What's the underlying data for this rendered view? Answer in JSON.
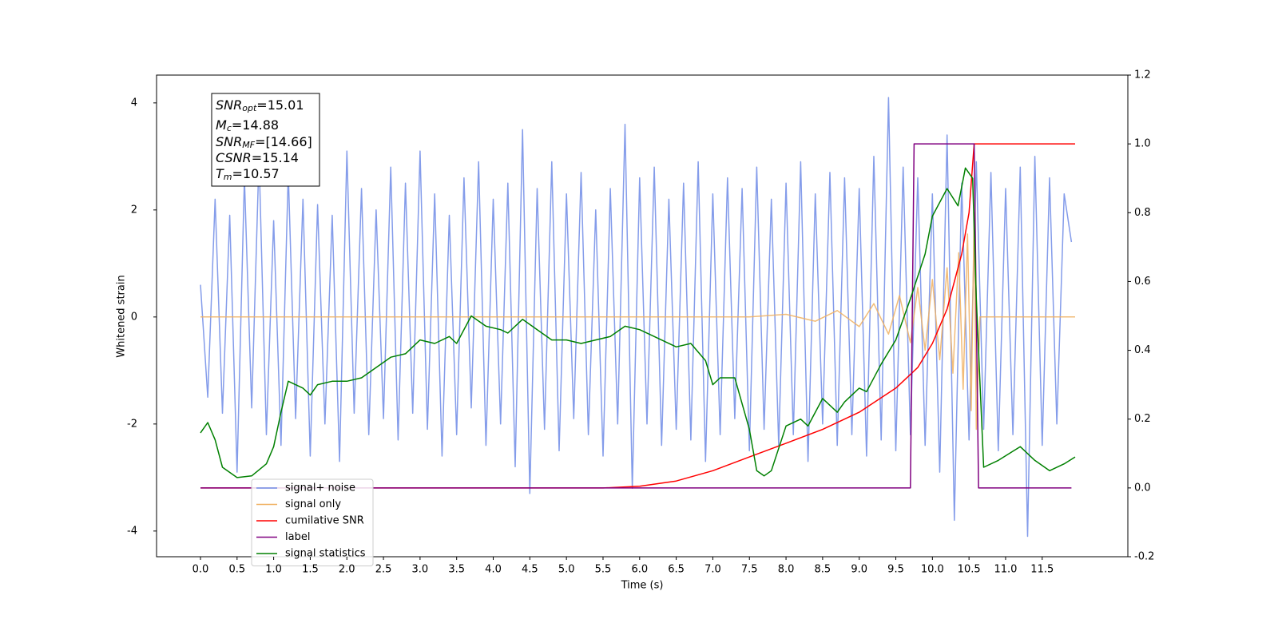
{
  "chart_data": {
    "type": "line",
    "xlabel": "Time (s)",
    "ylabel": "Whitened strain",
    "xlim": [
      -0.6,
      12.67
    ],
    "ylim": [
      -4.48,
      4.52
    ],
    "y2lim": [
      -0.2,
      1.2
    ],
    "xticks": [
      {
        "value": 0,
        "label": "0.0"
      },
      0.5,
      {
        "value": 1,
        "label": "1.0"
      },
      1.5,
      {
        "value": 2,
        "label": "2.0"
      },
      2.5,
      {
        "value": 3,
        "label": "3.0"
      },
      3.5,
      {
        "value": 4,
        "label": "4.0"
      },
      4.5,
      {
        "value": 5,
        "label": "5.0"
      },
      5.5,
      {
        "value": 6,
        "label": "6.0"
      },
      6.5,
      {
        "value": 7,
        "label": "7.0"
      },
      7.5,
      {
        "value": 8,
        "label": "8.0"
      },
      8.5,
      {
        "value": 9,
        "label": "9.0"
      },
      9.5,
      {
        "value": 10,
        "label": "10.0"
      },
      10.5,
      {
        "value": 11,
        "label": "11.0"
      },
      11.5
    ],
    "yticks": [
      -4,
      -2,
      0,
      2,
      4
    ],
    "y2ticks": [
      -0.2,
      {
        "value": 0,
        "label": "0.0"
      },
      0.2,
      0.4,
      0.6,
      0.8,
      {
        "value": 1,
        "label": "1.0"
      },
      1.2
    ],
    "legend": "lower left",
    "annotation": [
      {
        "symbol": "SNR",
        "sub": "opt",
        "text": "=15.01"
      },
      {
        "symbol": "M",
        "sub": "c",
        "text": "=14.88"
      },
      {
        "symbol": "SNR",
        "sub": "MF",
        "text": "=[14.66]"
      },
      {
        "symbol": "CSNR",
        "text": "=15.14"
      },
      {
        "symbol": "T",
        "sub": "m",
        "text": "=10.57"
      }
    ],
    "series": [
      {
        "name": "signal+ noise",
        "color": "#6f8be6",
        "axis": "y",
        "x": [
          0,
          0.1,
          0.2,
          0.3,
          0.4,
          0.5,
          0.6,
          0.7,
          0.8,
          0.9,
          1,
          1.1,
          1.2,
          1.3,
          1.4,
          1.5,
          1.6,
          1.7,
          1.8,
          1.9,
          2,
          2.1,
          2.2,
          2.3,
          2.4,
          2.5,
          2.6,
          2.7,
          2.8,
          2.9,
          3,
          3.1,
          3.2,
          3.3,
          3.4,
          3.5,
          3.6,
          3.7,
          3.8,
          3.9,
          4,
          4.1,
          4.2,
          4.3,
          4.4,
          4.5,
          4.6,
          4.7,
          4.8,
          4.9,
          5,
          5.1,
          5.2,
          5.3,
          5.4,
          5.5,
          5.6,
          5.7,
          5.8,
          5.9,
          6,
          6.1,
          6.2,
          6.3,
          6.4,
          6.5,
          6.6,
          6.7,
          6.8,
          6.9,
          7,
          7.1,
          7.2,
          7.3,
          7.4,
          7.5,
          7.6,
          7.7,
          7.8,
          7.9,
          8,
          8.1,
          8.2,
          8.3,
          8.4,
          8.5,
          8.6,
          8.7,
          8.8,
          8.9,
          9,
          9.1,
          9.2,
          9.3,
          9.4,
          9.5,
          9.6,
          9.7,
          9.8,
          9.9,
          10,
          10.1,
          10.2,
          10.3,
          10.4,
          10.5,
          10.6,
          10.7,
          10.8,
          10.9,
          11,
          11.1,
          11.2,
          11.3,
          11.4,
          11.5,
          11.6,
          11.7,
          11.8,
          11.9
        ],
        "values": [
          0.6,
          -1.5,
          2.2,
          -1.8,
          1.9,
          -2.9,
          2.6,
          -1.7,
          3.0,
          -2.2,
          1.8,
          -2.4,
          2.7,
          -1.9,
          2.2,
          -2.6,
          2.1,
          -2.0,
          1.9,
          -2.7,
          3.1,
          -1.8,
          2.4,
          -2.2,
          2.0,
          -1.9,
          2.8,
          -2.3,
          2.5,
          -1.8,
          3.1,
          -2.1,
          2.3,
          -2.6,
          1.9,
          -2.2,
          2.6,
          -1.7,
          2.9,
          -2.4,
          2.2,
          -2.0,
          2.5,
          -2.8,
          3.5,
          -3.3,
          2.4,
          -2.1,
          2.9,
          -2.5,
          2.3,
          -1.9,
          2.7,
          -2.2,
          2.0,
          -2.6,
          2.4,
          -2.0,
          3.6,
          -3.2,
          2.6,
          -2.0,
          2.8,
          -2.4,
          2.2,
          -2.1,
          2.5,
          -2.3,
          2.9,
          -2.7,
          2.3,
          -2.2,
          2.6,
          -1.9,
          2.4,
          -2.5,
          2.8,
          -2.1,
          2.2,
          -2.4,
          2.5,
          -2.2,
          2.9,
          -2.7,
          2.3,
          -2.0,
          2.7,
          -2.4,
          2.6,
          -2.2,
          2.4,
          -2.6,
          3.0,
          -2.3,
          4.1,
          -2.5,
          2.8,
          -2.2,
          2.6,
          -2.4,
          2.3,
          -2.9,
          3.4,
          -3.8,
          2.5,
          -2.3,
          2.9,
          -2.1,
          2.7,
          -2.5,
          2.4,
          -2.2,
          2.8,
          -4.1,
          3.0,
          -2.4,
          2.6,
          -2.0,
          2.3,
          1.4
        ]
      },
      {
        "name": "signal only",
        "color": "#f0b060",
        "axis": "y",
        "x": [
          0,
          7.5,
          8.0,
          8.4,
          8.7,
          9.0,
          9.2,
          9.4,
          9.55,
          9.7,
          9.8,
          9.9,
          10.0,
          10.1,
          10.2,
          10.28,
          10.36,
          10.42,
          10.48,
          10.53,
          10.57,
          10.6,
          10.65,
          11.95
        ],
        "values": [
          0,
          0,
          0.05,
          -0.08,
          0.12,
          -0.18,
          0.25,
          -0.32,
          0.4,
          -0.48,
          0.55,
          -0.62,
          0.7,
          -0.8,
          0.92,
          -1.05,
          1.2,
          -1.35,
          1.55,
          -1.75,
          1.95,
          -2.1,
          0,
          0
        ]
      },
      {
        "name": "cumilative SNR",
        "color": "#ff0000",
        "axis": "y2",
        "x": [
          0,
          5.5,
          6.0,
          6.5,
          7.0,
          7.5,
          8.0,
          8.5,
          9.0,
          9.5,
          9.8,
          10.0,
          10.2,
          10.4,
          10.5,
          10.57,
          11.95
        ],
        "values": [
          0,
          0,
          0.005,
          0.02,
          0.05,
          0.09,
          0.13,
          0.17,
          0.22,
          0.29,
          0.35,
          0.42,
          0.52,
          0.68,
          0.8,
          1.0,
          1.0
        ]
      },
      {
        "name": "label",
        "color": "#800080",
        "axis": "y2",
        "x": [
          0,
          9.7,
          9.75,
          10.57,
          10.63,
          11.9
        ],
        "values": [
          0,
          0,
          1,
          1,
          0,
          0
        ]
      },
      {
        "name": "signal statistics",
        "color": "#008000",
        "axis": "y2",
        "x": [
          0,
          0.1,
          0.2,
          0.3,
          0.5,
          0.7,
          0.9,
          1.0,
          1.1,
          1.2,
          1.4,
          1.5,
          1.6,
          1.8,
          2.0,
          2.2,
          2.4,
          2.6,
          2.8,
          3.0,
          3.2,
          3.4,
          3.5,
          3.7,
          3.9,
          4.1,
          4.2,
          4.4,
          4.6,
          4.8,
          5.0,
          5.2,
          5.4,
          5.6,
          5.8,
          6.0,
          6.2,
          6.5,
          6.7,
          6.9,
          7.0,
          7.1,
          7.3,
          7.5,
          7.6,
          7.7,
          7.8,
          8.0,
          8.2,
          8.3,
          8.5,
          8.7,
          8.8,
          9.0,
          9.1,
          9.3,
          9.5,
          9.7,
          9.9,
          10.0,
          10.2,
          10.35,
          10.45,
          10.55,
          10.6,
          10.7,
          10.9,
          11.2,
          11.4,
          11.6,
          11.8,
          11.95
        ],
        "values": [
          0.16,
          0.19,
          0.14,
          0.06,
          0.03,
          0.035,
          0.07,
          0.12,
          0.22,
          0.31,
          0.29,
          0.27,
          0.3,
          0.31,
          0.31,
          0.32,
          0.35,
          0.38,
          0.39,
          0.43,
          0.42,
          0.44,
          0.42,
          0.5,
          0.47,
          0.46,
          0.45,
          0.49,
          0.46,
          0.43,
          0.43,
          0.42,
          0.43,
          0.44,
          0.47,
          0.46,
          0.44,
          0.41,
          0.42,
          0.37,
          0.3,
          0.32,
          0.32,
          0.17,
          0.05,
          0.035,
          0.05,
          0.18,
          0.2,
          0.18,
          0.26,
          0.22,
          0.25,
          0.29,
          0.28,
          0.36,
          0.43,
          0.55,
          0.68,
          0.79,
          0.87,
          0.82,
          0.93,
          0.9,
          0.55,
          0.06,
          0.08,
          0.12,
          0.08,
          0.05,
          0.07,
          0.09
        ]
      }
    ]
  }
}
